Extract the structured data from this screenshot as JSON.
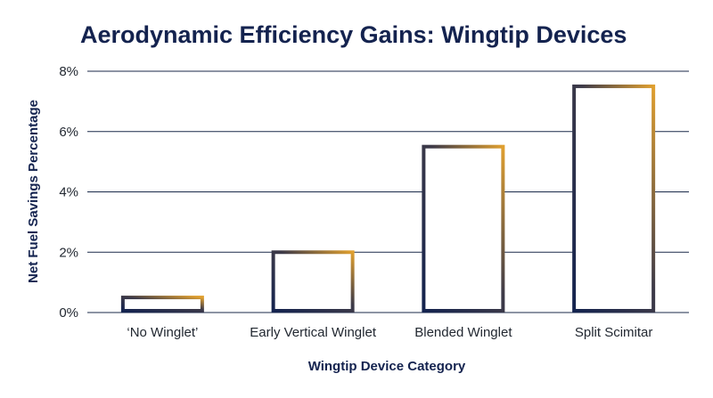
{
  "chart_data": {
    "type": "bar",
    "title": "Aerodynamic Efficiency Gains: Wingtip Devices",
    "xlabel": "Wingtip Device Category",
    "ylabel": "Net Fuel Savings Percentage",
    "categories": [
      "‘No Winglet’",
      "Early Vertical Winglet",
      "Blended Winglet",
      "Split Scimitar"
    ],
    "values": [
      0.5,
      2.0,
      5.5,
      7.5
    ],
    "ylim": [
      0,
      8
    ],
    "yticks": [
      {
        "value": 0,
        "label": "0%"
      },
      {
        "value": 2,
        "label": "2%"
      },
      {
        "value": 4,
        "label": "4%"
      },
      {
        "value": 6,
        "label": "6%"
      },
      {
        "value": 8,
        "label": "8%"
      }
    ],
    "grid": true,
    "colors": {
      "gradient_top": "#e0a030",
      "gradient_bottom": "#14234f",
      "grid": "#1b2a4a"
    }
  }
}
